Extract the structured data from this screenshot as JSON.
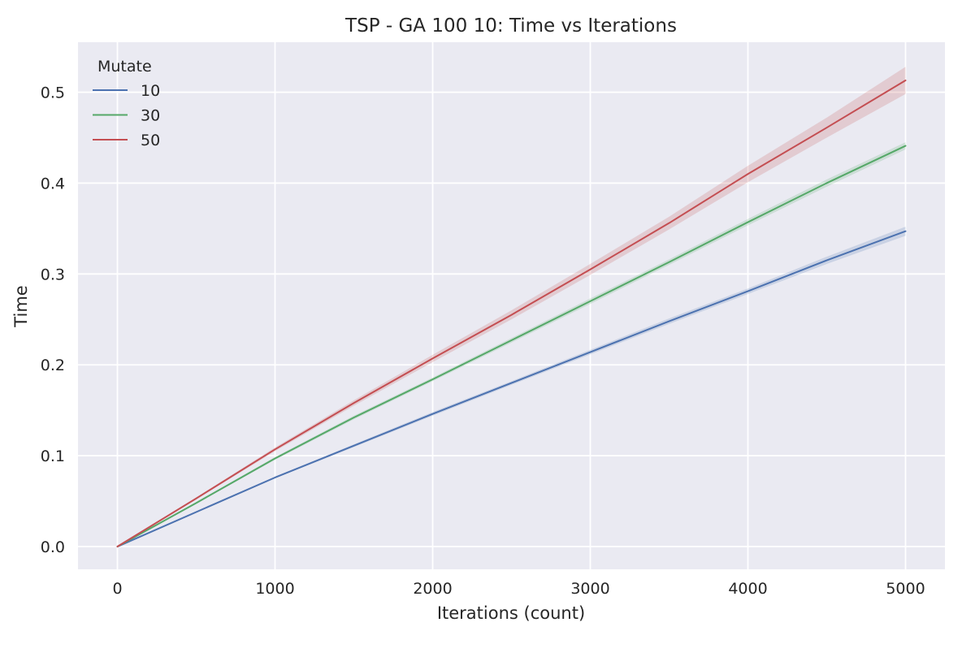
{
  "chart_data": {
    "type": "line",
    "title": "TSP - GA 100 10: Time vs Iterations",
    "xlabel": "Iterations (count)",
    "ylabel": "Time",
    "xlim": [
      -250,
      5250
    ],
    "ylim": [
      -0.025,
      0.555
    ],
    "xticks": [
      0,
      1000,
      2000,
      3000,
      4000,
      5000
    ],
    "xtick_labels": [
      "0",
      "1000",
      "2000",
      "3000",
      "4000",
      "5000"
    ],
    "yticks": [
      0.0,
      0.1,
      0.2,
      0.3,
      0.4,
      0.5
    ],
    "ytick_labels": [
      "0.0",
      "0.1",
      "0.2",
      "0.3",
      "0.4",
      "0.5"
    ],
    "grid": true,
    "background": "#eaeaf2",
    "legend": {
      "title": "Mutate",
      "placement": "top-left"
    },
    "series": [
      {
        "name": "10",
        "color": "#4c72b0",
        "x": [
          0,
          500,
          1000,
          1500,
          2000,
          2500,
          3000,
          3500,
          4000,
          4500,
          5000
        ],
        "y": [
          0.0,
          0.038,
          0.076,
          0.111,
          0.146,
          0.18,
          0.214,
          0.248,
          0.281,
          0.315,
          0.347
        ],
        "ci_halfwidth": [
          0.0,
          0.001,
          0.001,
          0.0015,
          0.002,
          0.002,
          0.0025,
          0.003,
          0.003,
          0.004,
          0.005
        ]
      },
      {
        "name": "30",
        "color": "#55a868",
        "x": [
          0,
          500,
          1000,
          1500,
          2000,
          2500,
          3000,
          3500,
          4000,
          4500,
          5000
        ],
        "y": [
          0.0,
          0.048,
          0.097,
          0.142,
          0.184,
          0.227,
          0.27,
          0.313,
          0.357,
          0.4,
          0.441
        ],
        "ci_halfwidth": [
          0.0,
          0.001,
          0.0015,
          0.002,
          0.002,
          0.0025,
          0.003,
          0.003,
          0.0035,
          0.004,
          0.004
        ]
      },
      {
        "name": "50",
        "color": "#c44e52",
        "x": [
          0,
          500,
          1000,
          1500,
          2000,
          2500,
          3000,
          3500,
          4000,
          4500,
          5000
        ],
        "y": [
          0.0,
          0.053,
          0.107,
          0.158,
          0.207,
          0.255,
          0.305,
          0.356,
          0.41,
          0.461,
          0.513
        ],
        "ci_halfwidth": [
          0.0,
          0.001,
          0.002,
          0.003,
          0.004,
          0.005,
          0.006,
          0.007,
          0.009,
          0.011,
          0.015
        ]
      }
    ]
  }
}
